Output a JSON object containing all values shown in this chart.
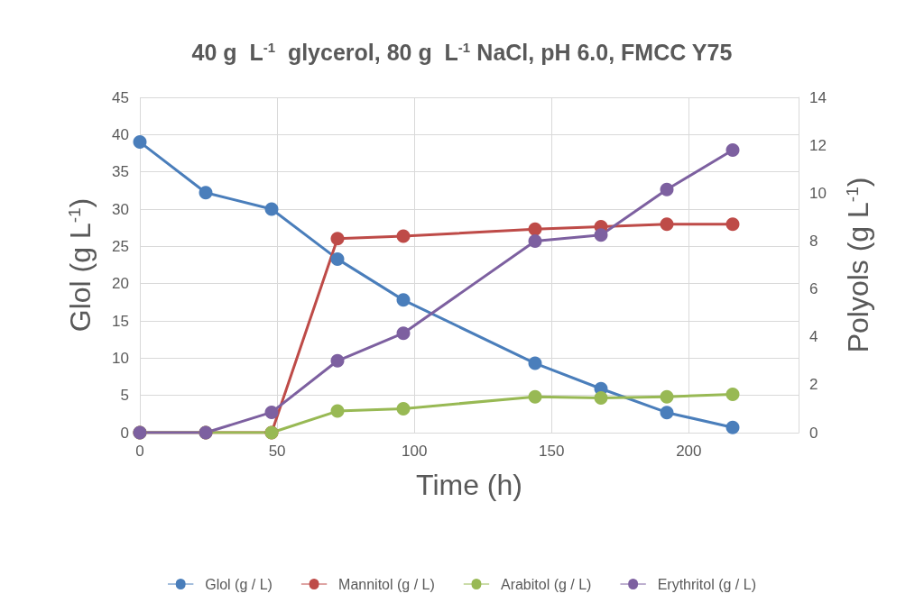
{
  "chart_data": {
    "type": "line",
    "title": "40 g  L$^{-1}$  glycerol, 80 g  L$^{-1}$ NaCl, pH 6.0, FMCC Y75",
    "xlabel": "Time (h)",
    "ylabel": "Glol (g L$^{-1}$)",
    "y2label": "Polyols (g L$^{-1}$)",
    "x": [
      0,
      24,
      48,
      72,
      96,
      144,
      168,
      192,
      216
    ],
    "series": [
      {
        "name": "Glol (g / L)",
        "color": "#4a7ebb",
        "values": [
          39,
          32.2,
          30,
          23.3,
          17.8,
          9.3,
          5.9,
          2.7,
          0.7
        ]
      },
      {
        "name": "Mannitol (g / L)",
        "color": "#be4b48",
        "axis": "y2",
        "values": [
          0,
          0,
          0,
          8.1,
          8.2,
          8.5,
          8.6,
          8.7,
          8.7
        ]
      },
      {
        "name": "Arabitol (g / L)",
        "color": "#98b954",
        "axis": "y2",
        "values": [
          0,
          0,
          0,
          0.9,
          1.0,
          1.5,
          1.45,
          1.5,
          1.6
        ]
      },
      {
        "name": "Erythritol (g / L)",
        "color": "#7d60a0",
        "axis": "y2",
        "values": [
          0,
          0,
          0.85,
          3.0,
          4.15,
          8.0,
          8.25,
          10.15,
          11.8
        ]
      }
    ],
    "xlim": [
      0,
      240
    ],
    "xticks": [
      0,
      50,
      100,
      150,
      200
    ],
    "ylim": [
      0,
      45
    ],
    "yticks": [
      0,
      5,
      10,
      15,
      20,
      25,
      30,
      35,
      40,
      45
    ],
    "y2lim": [
      0,
      14
    ],
    "y2ticks": [
      0,
      2,
      4,
      6,
      8,
      10,
      12,
      14
    ],
    "grid": true,
    "legend": "bottom",
    "marker": "circle",
    "line_style": "solid"
  }
}
